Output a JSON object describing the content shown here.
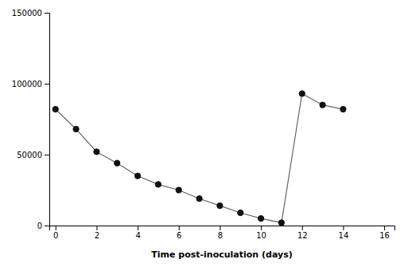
{
  "chart_data": {
    "type": "line",
    "xlabel": "Time post-inoculation (days)",
    "x": [
      0,
      1,
      2,
      3,
      4,
      5,
      6,
      7,
      8,
      9,
      10,
      11,
      12,
      13,
      14
    ],
    "values": [
      82000,
      68000,
      52000,
      44000,
      35000,
      29000,
      25000,
      19000,
      14000,
      9000,
      5000,
      2000,
      93000,
      85000,
      82000
    ],
    "color": "#666666",
    "colors": [
      "#111111",
      "#111111",
      "#111111",
      "#111111",
      "#111111",
      "#111111",
      "#111111",
      "#111111",
      "#111111",
      "#111111",
      "#111111",
      "#111111",
      "#111111",
      "#111111",
      "#111111"
    ],
    "marker": "circle",
    "xlim": [
      -0.3,
      16.5
    ],
    "ylim": [
      0,
      150000
    ],
    "xticks": [
      0,
      2,
      4,
      6,
      8,
      10,
      12,
      14,
      16
    ],
    "yticks": [
      0,
      50000,
      100000,
      150000
    ]
  }
}
